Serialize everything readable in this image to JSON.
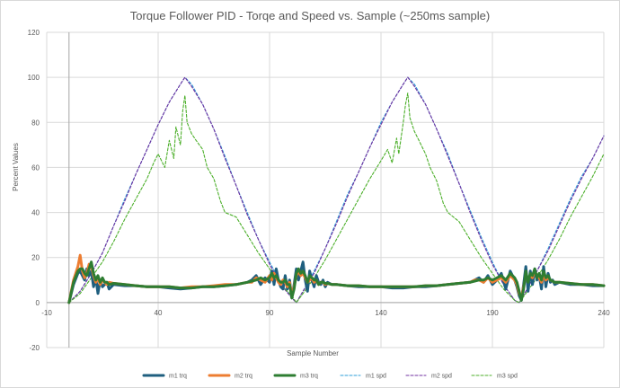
{
  "chart_data": {
    "type": "line",
    "title": "Torque Follower PID - Torqe and Speed vs. Sample (~250ms sample)",
    "xlabel": "Sample Number",
    "ylabel": "Percent Values",
    "xlim": [
      -10,
      240
    ],
    "ylim": [
      -20,
      120
    ],
    "xticks": [
      "-10",
      "40",
      "90",
      "140",
      "190",
      "240"
    ],
    "yticks": [
      "-20",
      "0",
      "20",
      "40",
      "60",
      "80",
      "100",
      "120"
    ],
    "grid": true,
    "legend_position": "bottom",
    "series": [
      {
        "name": "m1 trq",
        "color": "#1f5f7f",
        "style": "solid-thick",
        "x": [
          0,
          2,
          4,
          5,
          6,
          7,
          8,
          9,
          10,
          11,
          12,
          13,
          14,
          15,
          16,
          17,
          18,
          20,
          25,
          30,
          35,
          40,
          45,
          50,
          55,
          60,
          65,
          70,
          75,
          80,
          82,
          84,
          86,
          88,
          90,
          91,
          92,
          93,
          94,
          95,
          96,
          97,
          98,
          99,
          100,
          101,
          102,
          103,
          104,
          105,
          106,
          107,
          108,
          109,
          110,
          111,
          112,
          113,
          114,
          115,
          116,
          118,
          120,
          125,
          130,
          135,
          140,
          145,
          150,
          155,
          160,
          165,
          170,
          175,
          180,
          182,
          184,
          186,
          188,
          190,
          192,
          194,
          196,
          198,
          200,
          201,
          202,
          203,
          204,
          205,
          206,
          207,
          208,
          209,
          210,
          211,
          212,
          213,
          214,
          215,
          216,
          217,
          218,
          220,
          225,
          230,
          235,
          240
        ],
        "values": [
          0,
          8,
          13,
          14,
          12,
          10,
          15,
          12,
          14,
          7,
          11,
          4,
          10,
          7,
          8,
          9,
          6,
          8,
          7.5,
          7.5,
          7,
          7,
          6.5,
          6,
          6.5,
          7,
          7,
          7.5,
          8,
          9,
          10,
          12,
          8,
          11,
          9,
          14,
          8,
          15,
          10,
          7,
          6,
          12,
          6,
          10,
          2,
          8,
          15,
          10,
          14,
          18,
          10,
          5,
          14,
          10,
          7,
          12,
          9,
          8,
          10,
          7,
          9,
          8,
          8,
          7.5,
          7,
          7,
          7,
          6.5,
          6.5,
          7,
          7,
          7.5,
          8,
          8.5,
          9,
          10,
          11,
          9,
          12,
          8,
          10,
          13,
          6,
          14,
          10,
          7,
          3,
          1,
          8,
          16,
          5,
          14,
          8,
          15,
          10,
          12,
          6,
          16,
          7,
          13,
          9,
          10,
          8,
          9,
          8,
          8,
          7.5,
          7.5
        ]
      },
      {
        "name": "m2 trq",
        "color": "#ed7d31",
        "style": "solid-thick",
        "x": [
          0,
          2,
          4,
          5,
          6,
          7,
          8,
          9,
          10,
          11,
          12,
          13,
          14,
          15,
          16,
          17,
          18,
          20,
          25,
          30,
          35,
          40,
          45,
          50,
          55,
          60,
          65,
          70,
          75,
          80,
          82,
          84,
          86,
          88,
          90,
          91,
          92,
          93,
          94,
          95,
          96,
          97,
          98,
          99,
          100,
          101,
          102,
          103,
          104,
          105,
          106,
          107,
          108,
          109,
          110,
          111,
          112,
          113,
          114,
          115,
          116,
          118,
          120,
          125,
          130,
          135,
          140,
          145,
          150,
          155,
          160,
          165,
          170,
          175,
          180,
          182,
          184,
          186,
          188,
          190,
          192,
          194,
          196,
          198,
          200,
          201,
          202,
          203,
          204,
          205,
          206,
          207,
          208,
          209,
          210,
          211,
          212,
          213,
          214,
          215,
          216,
          217,
          218,
          220,
          225,
          230,
          235,
          240
        ],
        "values": [
          0,
          10,
          16,
          21,
          14,
          11,
          13,
          17,
          16,
          12,
          9,
          11,
          8,
          10,
          9,
          8,
          9,
          8.5,
          8,
          7.5,
          7,
          7,
          7,
          6.5,
          7,
          7,
          7.5,
          8,
          8,
          9,
          9,
          11,
          10,
          9,
          12,
          10,
          13,
          11,
          9,
          8,
          10,
          9,
          7,
          9,
          3,
          7,
          12,
          14,
          12,
          13,
          11,
          9,
          10,
          11,
          9,
          10,
          8,
          9,
          9,
          8,
          8.5,
          8,
          8,
          7.5,
          7.5,
          7,
          7,
          7,
          7,
          7,
          7.5,
          7.5,
          8,
          8.5,
          9,
          10,
          10,
          9,
          11,
          9,
          10,
          11,
          9,
          12,
          10,
          8,
          4,
          2,
          7,
          12,
          10,
          12,
          11,
          14,
          12,
          11,
          9,
          12,
          10,
          11,
          10,
          9.5,
          9,
          9,
          8.5,
          8,
          8,
          7.5
        ]
      },
      {
        "name": "m3 trq",
        "color": "#2e7d32",
        "style": "solid-thick",
        "x": [
          0,
          2,
          4,
          5,
          6,
          7,
          8,
          9,
          10,
          11,
          12,
          13,
          14,
          15,
          16,
          17,
          18,
          20,
          25,
          30,
          35,
          40,
          45,
          50,
          55,
          60,
          65,
          70,
          75,
          80,
          82,
          84,
          86,
          88,
          90,
          91,
          92,
          93,
          94,
          95,
          96,
          97,
          98,
          99,
          100,
          101,
          102,
          103,
          104,
          105,
          106,
          107,
          108,
          109,
          110,
          111,
          112,
          113,
          114,
          115,
          116,
          118,
          120,
          125,
          130,
          135,
          140,
          145,
          150,
          155,
          160,
          165,
          170,
          175,
          180,
          182,
          184,
          186,
          188,
          190,
          192,
          194,
          196,
          198,
          200,
          201,
          202,
          203,
          204,
          205,
          206,
          207,
          208,
          209,
          210,
          211,
          212,
          213,
          214,
          215,
          216,
          217,
          218,
          220,
          225,
          230,
          235,
          240
        ],
        "values": [
          0,
          9,
          14,
          15,
          15,
          13,
          12,
          15,
          18,
          13,
          10,
          12,
          9,
          11,
          9,
          9,
          8,
          8.5,
          8,
          7.5,
          7,
          7,
          7,
          6.5,
          6.5,
          7,
          7,
          7.5,
          8,
          9,
          9.5,
          10,
          11,
          10,
          11,
          13,
          11,
          12,
          10,
          9,
          9,
          10,
          8,
          8,
          2,
          6,
          13,
          15,
          13,
          14,
          12,
          9,
          12,
          11,
          10,
          10,
          8,
          9,
          9,
          8.5,
          8.5,
          8,
          8,
          7.5,
          7.5,
          7,
          7,
          7,
          7,
          7,
          7.5,
          7.5,
          8,
          8.5,
          9,
          9.5,
          10,
          10,
          11,
          10,
          11,
          12,
          10,
          13,
          11,
          9,
          5,
          1,
          6,
          14,
          9,
          13,
          12,
          15,
          11,
          13,
          10,
          14,
          11,
          12,
          10,
          9.5,
          9,
          9,
          8.5,
          8,
          8,
          7.5
        ]
      },
      {
        "name": "m1 spd",
        "color": "#2e9fd8",
        "style": "dashed",
        "x": [
          0,
          5,
          10,
          15,
          20,
          25,
          30,
          35,
          40,
          45,
          50,
          52,
          55,
          60,
          65,
          70,
          75,
          80,
          85,
          90,
          95,
          100,
          102,
          105,
          110,
          115,
          120,
          125,
          130,
          135,
          140,
          145,
          150,
          152,
          155,
          160,
          165,
          170,
          175,
          180,
          185,
          190,
          195,
          200,
          202,
          205,
          210,
          215,
          220,
          225,
          230,
          235,
          240
        ],
        "values": [
          0,
          5,
          13,
          22,
          34,
          46,
          57,
          68,
          79,
          89,
          97,
          100,
          97,
          88,
          77,
          65,
          52,
          40,
          28,
          18,
          9,
          2,
          0,
          5,
          14,
          24,
          36,
          48,
          58,
          69,
          80,
          89,
          97,
          100,
          97,
          88,
          77,
          66,
          53,
          41,
          29,
          18,
          8,
          1,
          0,
          5,
          14,
          24,
          35,
          46,
          56,
          64,
          74
        ]
      },
      {
        "name": "m2 spd",
        "color": "#7030a0",
        "style": "dashed",
        "x": [
          0,
          5,
          10,
          15,
          20,
          25,
          30,
          35,
          40,
          45,
          50,
          52,
          55,
          60,
          65,
          70,
          75,
          80,
          85,
          90,
          95,
          100,
          102,
          105,
          110,
          115,
          120,
          125,
          130,
          135,
          140,
          145,
          150,
          152,
          155,
          160,
          165,
          170,
          175,
          180,
          185,
          190,
          195,
          200,
          202,
          205,
          210,
          215,
          220,
          225,
          230,
          235,
          240
        ],
        "values": [
          0,
          5,
          13,
          22,
          34,
          45,
          57,
          68,
          79,
          89,
          97,
          100,
          96,
          88,
          77,
          64,
          52,
          39,
          28,
          17,
          8,
          2,
          0,
          5,
          13,
          24,
          35,
          47,
          58,
          69,
          79,
          89,
          97,
          100,
          96,
          88,
          77,
          65,
          53,
          40,
          28,
          17,
          8,
          1,
          0,
          5,
          14,
          23,
          34,
          45,
          55,
          64,
          74
        ]
      },
      {
        "name": "m3 spd",
        "color": "#4caf2a",
        "style": "dashed",
        "x": [
          0,
          5,
          10,
          15,
          20,
          25,
          30,
          35,
          38,
          40,
          43,
          45,
          47,
          48,
          50,
          51,
          52,
          53,
          55,
          57,
          60,
          62,
          65,
          68,
          70,
          75,
          80,
          85,
          90,
          95,
          100,
          102,
          105,
          110,
          115,
          120,
          125,
          130,
          135,
          140,
          143,
          145,
          147,
          148,
          150,
          151,
          152,
          153,
          155,
          157,
          160,
          162,
          165,
          168,
          170,
          175,
          180,
          185,
          190,
          195,
          200,
          202,
          205,
          210,
          215,
          220,
          225,
          230,
          235,
          240
        ],
        "values": [
          0,
          4,
          11,
          18,
          27,
          37,
          46,
          55,
          62,
          66,
          60,
          72,
          64,
          78,
          70,
          85,
          92,
          80,
          75,
          72,
          68,
          60,
          55,
          45,
          40,
          38,
          30,
          22,
          15,
          8,
          3,
          0,
          4,
          11,
          19,
          28,
          37,
          46,
          55,
          63,
          68,
          62,
          73,
          66,
          80,
          88,
          93,
          82,
          76,
          72,
          66,
          60,
          54,
          44,
          40,
          36,
          28,
          20,
          13,
          6,
          1,
          0,
          4,
          11,
          19,
          28,
          38,
          47,
          56,
          66
        ]
      }
    ]
  }
}
